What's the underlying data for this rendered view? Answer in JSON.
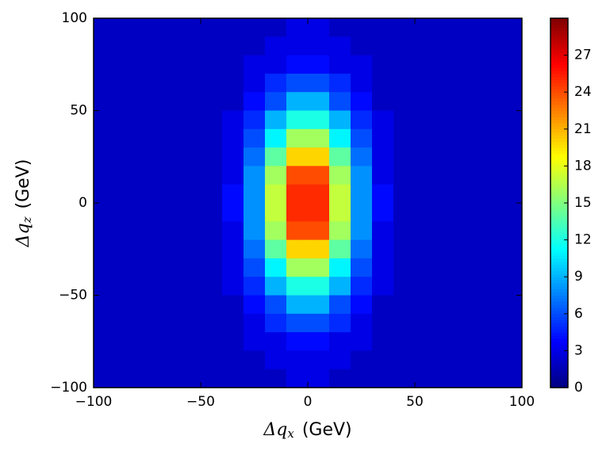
{
  "chart_data": {
    "type": "heatmap",
    "xlabel": {
      "symbol": "Δq",
      "subscript": "x",
      "unit": "(GeV)"
    },
    "ylabel": {
      "symbol": "Δq",
      "subscript": "z",
      "unit": "(GeV)"
    },
    "xlim": [
      -100,
      100
    ],
    "ylim": [
      -100,
      100
    ],
    "xticks": [
      {
        "value": -100,
        "label": "−100"
      },
      {
        "value": -50,
        "label": "−50"
      },
      0,
      50,
      100
    ],
    "yticks": [
      {
        "value": -100,
        "label": "−100"
      },
      {
        "value": -50,
        "label": "−50"
      },
      0,
      50,
      100
    ],
    "colormap": "jet",
    "clim": [
      0,
      30
    ],
    "cticks": [
      0,
      3,
      6,
      9,
      12,
      15,
      18,
      21,
      24,
      27
    ],
    "z": [
      [
        2,
        2,
        2,
        2,
        2,
        2,
        2,
        2,
        2,
        3,
        3,
        2,
        2,
        2,
        2,
        2,
        2,
        2,
        2,
        2
      ],
      [
        2,
        2,
        2,
        2,
        2,
        2,
        2,
        2,
        3,
        3,
        3,
        3,
        2,
        2,
        2,
        2,
        2,
        2,
        2,
        2
      ],
      [
        2,
        2,
        2,
        2,
        2,
        2,
        2,
        3,
        3,
        4,
        4,
        3,
        3,
        2,
        2,
        2,
        2,
        2,
        2,
        2
      ],
      [
        2,
        2,
        2,
        2,
        2,
        2,
        2,
        3,
        5,
        6,
        6,
        5,
        3,
        2,
        2,
        2,
        2,
        2,
        2,
        2
      ],
      [
        2,
        2,
        2,
        2,
        2,
        2,
        2,
        4,
        6,
        9,
        9,
        6,
        4,
        2,
        2,
        2,
        2,
        2,
        2,
        2
      ],
      [
        2,
        2,
        2,
        2,
        2,
        2,
        3,
        5,
        9,
        12,
        12,
        9,
        5,
        3,
        2,
        2,
        2,
        2,
        2,
        2
      ],
      [
        2,
        2,
        2,
        2,
        2,
        2,
        3,
        6,
        11,
        16,
        16,
        11,
        6,
        3,
        2,
        2,
        2,
        2,
        2,
        2
      ],
      [
        2,
        2,
        2,
        2,
        2,
        2,
        3,
        7,
        14,
        20,
        20,
        14,
        7,
        3,
        2,
        2,
        2,
        2,
        2,
        2
      ],
      [
        2,
        2,
        2,
        2,
        2,
        2,
        3,
        8,
        16,
        24,
        24,
        16,
        8,
        3,
        2,
        2,
        2,
        2,
        2,
        2
      ],
      [
        2,
        2,
        2,
        2,
        2,
        2,
        4,
        8,
        17,
        25,
        25,
        17,
        8,
        4,
        2,
        2,
        2,
        2,
        2,
        2
      ],
      [
        2,
        2,
        2,
        2,
        2,
        2,
        4,
        8,
        17,
        25,
        25,
        17,
        8,
        4,
        2,
        2,
        2,
        2,
        2,
        2
      ],
      [
        2,
        2,
        2,
        2,
        2,
        2,
        3,
        8,
        16,
        24,
        24,
        16,
        8,
        3,
        2,
        2,
        2,
        2,
        2,
        2
      ],
      [
        2,
        2,
        2,
        2,
        2,
        2,
        3,
        7,
        14,
        20,
        20,
        14,
        7,
        3,
        2,
        2,
        2,
        2,
        2,
        2
      ],
      [
        2,
        2,
        2,
        2,
        2,
        2,
        3,
        6,
        11,
        16,
        16,
        11,
        6,
        3,
        2,
        2,
        2,
        2,
        2,
        2
      ],
      [
        2,
        2,
        2,
        2,
        2,
        2,
        3,
        5,
        9,
        12,
        12,
        9,
        5,
        3,
        2,
        2,
        2,
        2,
        2,
        2
      ],
      [
        2,
        2,
        2,
        2,
        2,
        2,
        2,
        4,
        6,
        9,
        9,
        6,
        4,
        2,
        2,
        2,
        2,
        2,
        2,
        2
      ],
      [
        2,
        2,
        2,
        2,
        2,
        2,
        2,
        3,
        5,
        6,
        6,
        5,
        3,
        2,
        2,
        2,
        2,
        2,
        2,
        2
      ],
      [
        2,
        2,
        2,
        2,
        2,
        2,
        2,
        3,
        3,
        4,
        4,
        3,
        3,
        2,
        2,
        2,
        2,
        2,
        2,
        2
      ],
      [
        2,
        2,
        2,
        2,
        2,
        2,
        2,
        2,
        3,
        3,
        3,
        3,
        2,
        2,
        2,
        2,
        2,
        2,
        2,
        2
      ],
      [
        2,
        2,
        2,
        2,
        2,
        2,
        2,
        2,
        2,
        3,
        3,
        2,
        2,
        2,
        2,
        2,
        2,
        2,
        2,
        2
      ]
    ]
  }
}
